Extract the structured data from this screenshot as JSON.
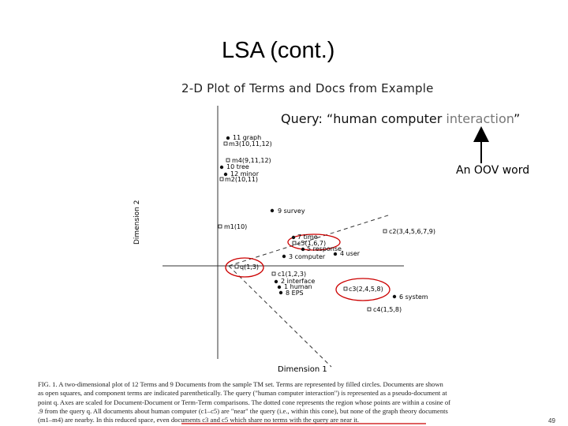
{
  "slide": {
    "title": "LSA (cont.)",
    "page_number": "49"
  },
  "plot": {
    "title": "2-D Plot of Terms and Docs from Example",
    "xlabel": "Dimension 1",
    "ylabel": "Dimension 2"
  },
  "query": {
    "prefix": "Query: “human computer ",
    "oov_term": "interaction",
    "suffix": "”"
  },
  "oov_label": "An OOV word",
  "terms": [
    {
      "label": "11 graph"
    },
    {
      "label": "10 tree"
    },
    {
      "label": "12 minor"
    },
    {
      "label": "9 survey"
    },
    {
      "label": "7 time"
    },
    {
      "label": "5 response"
    },
    {
      "label": "4 user"
    },
    {
      "label": "3 computer"
    },
    {
      "label": "2 interface"
    },
    {
      "label": "1 human"
    },
    {
      "label": "8 EPS"
    },
    {
      "label": "6 system"
    }
  ],
  "documents": [
    {
      "label": "m3(10,11,12)"
    },
    {
      "label": "m4(9,11,12)"
    },
    {
      "label": "m2(10,11)"
    },
    {
      "label": "m1(10)"
    },
    {
      "label": "c2(3,4,5,6,7,9)"
    },
    {
      "label": "c5(1,6,7)"
    },
    {
      "label": "q(1,3)"
    },
    {
      "label": "c1(1,2,3)"
    },
    {
      "label": "c3(2,4,5,8)"
    },
    {
      "label": "c4(1,5,8)"
    }
  ],
  "caption": {
    "line1": "FIG. 1.    A two-dimensional plot of 12 Terms and 9 Documents from the sample TM set. Terms are represented by filled circles. Documents are shown",
    "line2": "as open squares, and component terms are indicated parenthetically. The query (\"human computer interaction\") is represented as a pseudo-document at",
    "line3": "point q. Axes are scaled for Document-Document or Term-Term comparisons. The dotted cone represents the region whose points are within a cosine of",
    "line4": ".9 from the query q. All documents about human computer (c1–c5) are \"near\" the query (i.e., within this cone), but none of the graph theory documents",
    "line5": "(m1–m4) are nearby. In this reduced space, even documents c3 and c5 which share no terms with the query are near it."
  },
  "colors": {
    "highlight_circle": "#cc0000",
    "axes": "#333333",
    "points": "#111111"
  }
}
